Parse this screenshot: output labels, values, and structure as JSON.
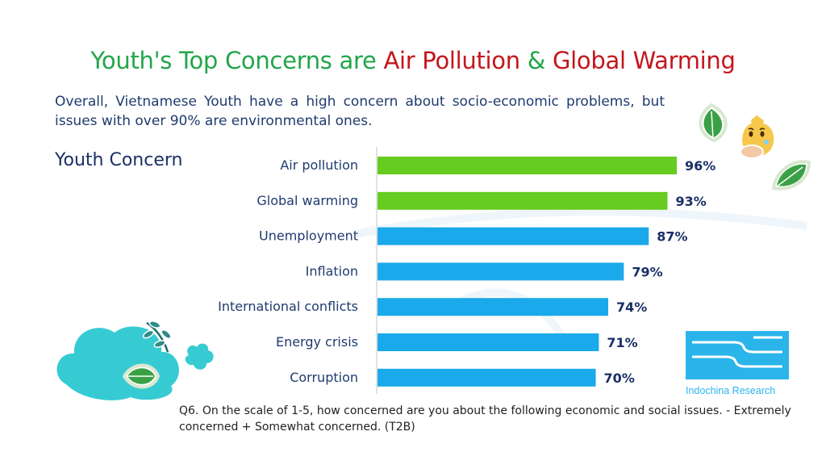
{
  "title": {
    "part1": "Youth's Top Concerns are ",
    "part2": "Air Pollution",
    "part3": " & ",
    "part4": "Global Warming"
  },
  "subtitle": "Overall, Vietnamese Youth have a high concern about socio-economic problems, but issues with over 90% are environmental ones.",
  "section_label": "Youth Concern",
  "footnote": "Q6. On the scale of 1-5, how concerned are you about the following economic and social issues. - Extremely concerned + Somewhat concerned. (T2B)",
  "logo": {
    "text": "Indochina Research"
  },
  "colors": {
    "green": "#66cc1f",
    "blue": "#1aa9ea",
    "label": "#1f3b6e",
    "value": "#1a2f66"
  },
  "chart_data": {
    "type": "bar",
    "orientation": "horizontal",
    "categories": [
      "Air pollution",
      "Global warming",
      "Unemployment",
      "Inflation",
      "International conflicts",
      "Energy crisis",
      "Corruption"
    ],
    "values": [
      96,
      93,
      87,
      79,
      74,
      71,
      70
    ],
    "value_labels": [
      "96%",
      "93%",
      "87%",
      "79%",
      "74%",
      "71%",
      "70%"
    ],
    "highlight": [
      true,
      true,
      false,
      false,
      false,
      false,
      false
    ],
    "xlim": [
      0,
      100
    ],
    "grid": false
  }
}
